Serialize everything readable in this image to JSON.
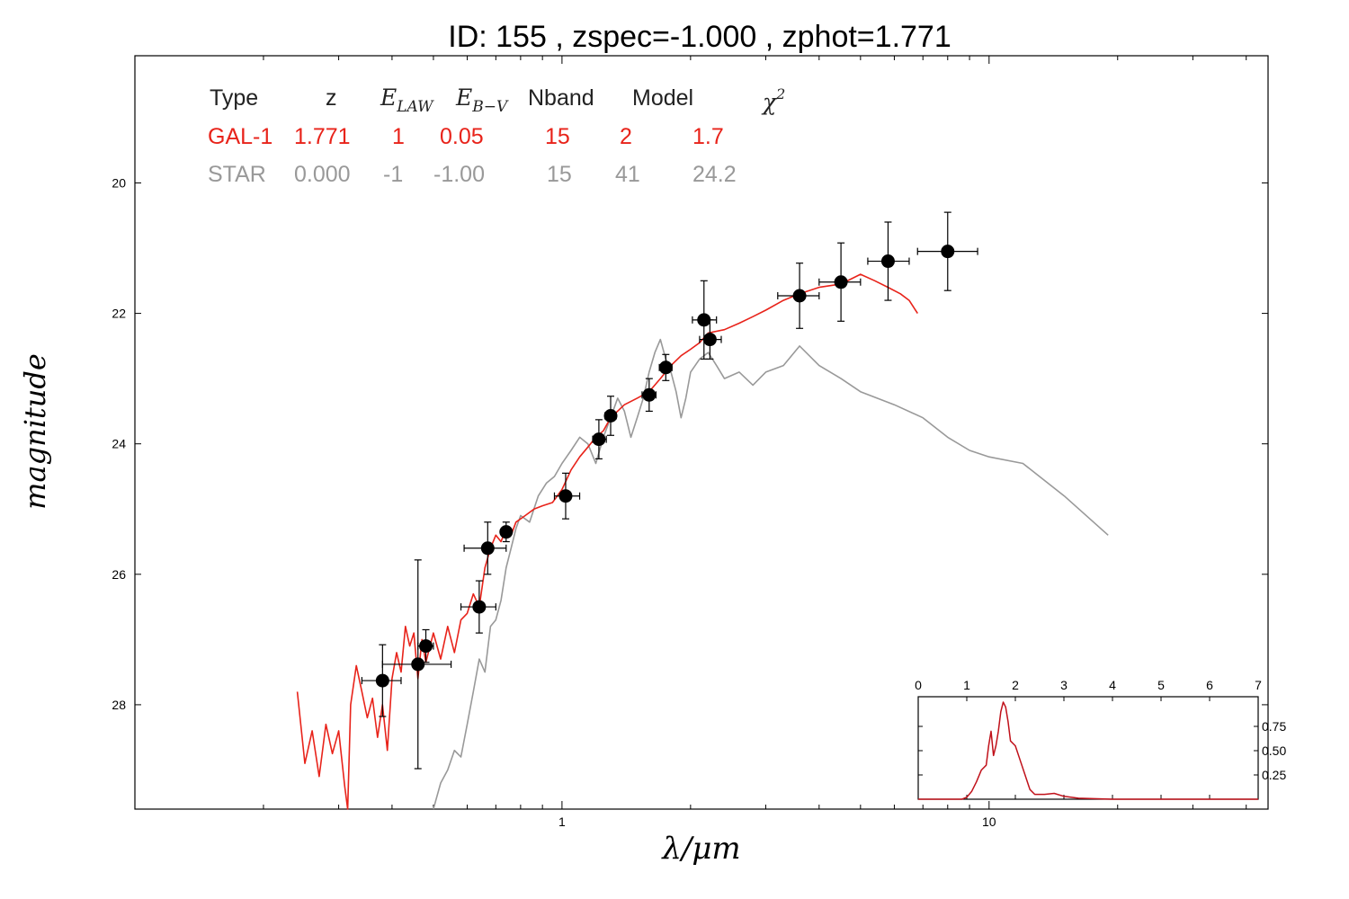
{
  "chart_data": [
    {
      "type": "scatter",
      "title": "ID:  155   , zspec=-1.000 , zphot=1.771",
      "xlabel": "λ/μm",
      "ylabel": "magnitude",
      "xscale": "log",
      "xlim": [
        0.1,
        45
      ],
      "ylim": [
        29.6,
        18.05
      ],
      "x_ticks": [
        1,
        10
      ],
      "x_tick_labels": [
        "1",
        "10"
      ],
      "y_ticks": [
        20,
        22,
        24,
        26,
        28
      ],
      "y_tick_labels": [
        "20",
        "22",
        "24",
        "26",
        "28"
      ],
      "fit_table": {
        "headers": [
          "Type",
          "z",
          "E_LAW",
          "E_B-V",
          "Nband",
          "Model",
          "χ²"
        ],
        "header_symbols": {
          "elaw_main": "E",
          "elaw_sub": "LAW",
          "ebv_main": "E",
          "ebv_sub": "B−V",
          "chi_main": "χ",
          "chi_sup": "2"
        },
        "rows": [
          {
            "type": "GAL-1",
            "z": "1.771",
            "elaw": "1",
            "ebv": "0.05",
            "nband": "15",
            "model": "2",
            "chi2": "1.7",
            "color": "#e8231a"
          },
          {
            "type": "STAR",
            "z": "0.000",
            "elaw": "-1",
            "ebv": "-1.00",
            "nband": "15",
            "model": "41",
            "chi2": "24.2",
            "color": "#999999"
          }
        ]
      },
      "photometry": {
        "color": "#000000",
        "points": [
          {
            "x": 0.38,
            "y": 27.63,
            "xerr": [
              0.34,
              0.42
            ],
            "yerr": 0.55
          },
          {
            "x": 0.46,
            "y": 27.38,
            "xerr": [
              0.38,
              0.55
            ],
            "yerr": 1.6
          },
          {
            "x": 0.48,
            "y": 27.1,
            "xerr": [
              0.46,
              0.5
            ],
            "yerr": 0.25
          },
          {
            "x": 0.64,
            "y": 26.5,
            "xerr": [
              0.58,
              0.7
            ],
            "yerr": 0.4
          },
          {
            "x": 0.67,
            "y": 25.6,
            "xerr": [
              0.59,
              0.74
            ],
            "yerr": 0.4
          },
          {
            "x": 0.74,
            "y": 25.35,
            "xerr": [
              0.72,
              0.76
            ],
            "yerr": 0.15
          },
          {
            "x": 1.02,
            "y": 24.8,
            "xerr": [
              0.96,
              1.1
            ],
            "yerr": 0.35
          },
          {
            "x": 1.22,
            "y": 23.93,
            "xerr": [
              1.18,
              1.27
            ],
            "yerr": 0.3
          },
          {
            "x": 1.3,
            "y": 23.57,
            "xerr": [
              1.26,
              1.34
            ],
            "yerr": 0.3
          },
          {
            "x": 1.6,
            "y": 23.25,
            "xerr": [
              1.54,
              1.66
            ],
            "yerr": 0.25
          },
          {
            "x": 1.75,
            "y": 22.83,
            "xerr": [
              1.69,
              1.81
            ],
            "yerr": 0.2
          },
          {
            "x": 2.15,
            "y": 22.1,
            "xerr": [
              2.02,
              2.3
            ],
            "yerr": 0.6
          },
          {
            "x": 2.22,
            "y": 22.4,
            "xerr": [
              2.1,
              2.36
            ],
            "yerr": 0.3
          },
          {
            "x": 3.6,
            "y": 21.73,
            "xerr": [
              3.2,
              4.0
            ],
            "yerr": 0.5
          },
          {
            "x": 4.5,
            "y": 21.52,
            "xerr": [
              4.0,
              5.0
            ],
            "yerr": 0.6
          },
          {
            "x": 5.8,
            "y": 21.2,
            "xerr": [
              5.2,
              6.5
            ],
            "yerr": 0.6
          },
          {
            "x": 8.0,
            "y": 21.05,
            "xerr": [
              6.8,
              9.4
            ],
            "yerr": 0.6
          }
        ]
      },
      "series": [
        {
          "name": "GAL-1",
          "color": "#e8231a",
          "points": [
            [
              0.24,
              27.8
            ],
            [
              0.25,
              28.9
            ],
            [
              0.26,
              28.4
            ],
            [
              0.27,
              29.1
            ],
            [
              0.28,
              28.3
            ],
            [
              0.29,
              28.75
            ],
            [
              0.3,
              28.4
            ],
            [
              0.31,
              29.25
            ],
            [
              0.315,
              29.6
            ],
            [
              0.32,
              28.0
            ],
            [
              0.33,
              27.4
            ],
            [
              0.34,
              27.8
            ],
            [
              0.35,
              28.2
            ],
            [
              0.36,
              27.9
            ],
            [
              0.37,
              28.5
            ],
            [
              0.38,
              28.0
            ],
            [
              0.39,
              28.7
            ],
            [
              0.4,
              27.6
            ],
            [
              0.41,
              27.2
            ],
            [
              0.42,
              27.5
            ],
            [
              0.43,
              26.8
            ],
            [
              0.44,
              27.1
            ],
            [
              0.45,
              26.9
            ],
            [
              0.46,
              27.6
            ],
            [
              0.47,
              27.0
            ],
            [
              0.48,
              27.35
            ],
            [
              0.5,
              26.9
            ],
            [
              0.52,
              27.3
            ],
            [
              0.54,
              26.8
            ],
            [
              0.56,
              27.2
            ],
            [
              0.58,
              26.7
            ],
            [
              0.6,
              26.6
            ],
            [
              0.62,
              26.3
            ],
            [
              0.64,
              26.5
            ],
            [
              0.66,
              25.9
            ],
            [
              0.68,
              25.6
            ],
            [
              0.7,
              25.4
            ],
            [
              0.72,
              25.5
            ],
            [
              0.74,
              25.3
            ],
            [
              0.76,
              25.4
            ],
            [
              0.78,
              25.2
            ],
            [
              0.82,
              25.1
            ],
            [
              0.86,
              25.0
            ],
            [
              0.9,
              24.95
            ],
            [
              0.95,
              24.9
            ],
            [
              1.0,
              24.7
            ],
            [
              1.05,
              24.4
            ],
            [
              1.1,
              24.2
            ],
            [
              1.15,
              24.05
            ],
            [
              1.2,
              23.9
            ],
            [
              1.25,
              23.8
            ],
            [
              1.3,
              23.6
            ],
            [
              1.4,
              23.4
            ],
            [
              1.5,
              23.3
            ],
            [
              1.6,
              23.2
            ],
            [
              1.7,
              23.0
            ],
            [
              1.8,
              22.8
            ],
            [
              1.9,
              22.65
            ],
            [
              2.0,
              22.55
            ],
            [
              2.1,
              22.45
            ],
            [
              2.2,
              22.3
            ],
            [
              2.4,
              22.25
            ],
            [
              2.6,
              22.15
            ],
            [
              2.8,
              22.05
            ],
            [
              3.0,
              21.95
            ],
            [
              3.3,
              21.8
            ],
            [
              3.6,
              21.7
            ],
            [
              4.0,
              21.6
            ],
            [
              4.5,
              21.55
            ],
            [
              5.0,
              21.4
            ],
            [
              5.4,
              21.5
            ],
            [
              5.8,
              21.6
            ],
            [
              6.2,
              21.7
            ],
            [
              6.5,
              21.8
            ],
            [
              6.8,
              22.0
            ]
          ]
        },
        {
          "name": "STAR",
          "color": "#999999",
          "points": [
            [
              0.5,
              29.6
            ],
            [
              0.52,
              29.2
            ],
            [
              0.54,
              29.0
            ],
            [
              0.56,
              28.7
            ],
            [
              0.58,
              28.8
            ],
            [
              0.6,
              28.3
            ],
            [
              0.62,
              27.8
            ],
            [
              0.64,
              27.3
            ],
            [
              0.66,
              27.5
            ],
            [
              0.68,
              26.8
            ],
            [
              0.7,
              26.7
            ],
            [
              0.72,
              26.4
            ],
            [
              0.74,
              25.9
            ],
            [
              0.76,
              25.6
            ],
            [
              0.78,
              25.3
            ],
            [
              0.8,
              25.1
            ],
            [
              0.84,
              25.2
            ],
            [
              0.88,
              24.8
            ],
            [
              0.92,
              24.6
            ],
            [
              0.96,
              24.5
            ],
            [
              1.0,
              24.3
            ],
            [
              1.05,
              24.1
            ],
            [
              1.1,
              23.9
            ],
            [
              1.15,
              24.0
            ],
            [
              1.2,
              24.3
            ],
            [
              1.25,
              23.9
            ],
            [
              1.3,
              23.6
            ],
            [
              1.35,
              23.3
            ],
            [
              1.4,
              23.5
            ],
            [
              1.45,
              23.9
            ],
            [
              1.5,
              23.6
            ],
            [
              1.55,
              23.3
            ],
            [
              1.6,
              22.9
            ],
            [
              1.65,
              22.6
            ],
            [
              1.7,
              22.4
            ],
            [
              1.75,
              22.7
            ],
            [
              1.8,
              22.9
            ],
            [
              1.85,
              23.2
            ],
            [
              1.9,
              23.6
            ],
            [
              1.95,
              23.3
            ],
            [
              2.0,
              22.9
            ],
            [
              2.1,
              22.7
            ],
            [
              2.2,
              22.6
            ],
            [
              2.3,
              22.8
            ],
            [
              2.4,
              23.0
            ],
            [
              2.6,
              22.9
            ],
            [
              2.8,
              23.1
            ],
            [
              3.0,
              22.9
            ],
            [
              3.3,
              22.8
            ],
            [
              3.6,
              22.5
            ],
            [
              4.0,
              22.8
            ],
            [
              4.5,
              23.0
            ],
            [
              5.0,
              23.2
            ],
            [
              6.0,
              23.4
            ],
            [
              7.0,
              23.6
            ],
            [
              8.0,
              23.9
            ],
            [
              9.0,
              24.1
            ],
            [
              10.0,
              24.2
            ],
            [
              12.0,
              24.3
            ],
            [
              15.0,
              24.8
            ],
            [
              19.0,
              25.4
            ]
          ]
        }
      ]
    },
    {
      "type": "line",
      "description_role": "inset z-probability distribution",
      "xlim": [
        0,
        7
      ],
      "ylim": [
        0,
        1.0
      ],
      "x_ticks": [
        0,
        1,
        2,
        3,
        4,
        5,
        6,
        7
      ],
      "x_tick_labels": [
        "0",
        "1",
        "2",
        "3",
        "4",
        "5",
        "6",
        "7"
      ],
      "y_ticks": [
        0.25,
        0.5,
        0.75
      ],
      "y_tick_labels": [
        "0.25",
        "0.50",
        "0.75"
      ],
      "series": [
        {
          "color": "#c0111a",
          "points": [
            [
              0,
              0
            ],
            [
              0.9,
              0
            ],
            [
              1.0,
              0.02
            ],
            [
              1.1,
              0.08
            ],
            [
              1.2,
              0.18
            ],
            [
              1.3,
              0.3
            ],
            [
              1.4,
              0.35
            ],
            [
              1.45,
              0.55
            ],
            [
              1.5,
              0.7
            ],
            [
              1.55,
              0.45
            ],
            [
              1.6,
              0.55
            ],
            [
              1.65,
              0.7
            ],
            [
              1.7,
              0.9
            ],
            [
              1.75,
              1.0
            ],
            [
              1.8,
              0.95
            ],
            [
              1.85,
              0.8
            ],
            [
              1.9,
              0.6
            ],
            [
              2.0,
              0.55
            ],
            [
              2.1,
              0.4
            ],
            [
              2.2,
              0.25
            ],
            [
              2.3,
              0.1
            ],
            [
              2.4,
              0.05
            ],
            [
              2.6,
              0.05
            ],
            [
              2.8,
              0.06
            ],
            [
              3.0,
              0.03
            ],
            [
              3.3,
              0.01
            ],
            [
              4.0,
              0
            ],
            [
              7.0,
              0
            ]
          ]
        }
      ]
    }
  ]
}
